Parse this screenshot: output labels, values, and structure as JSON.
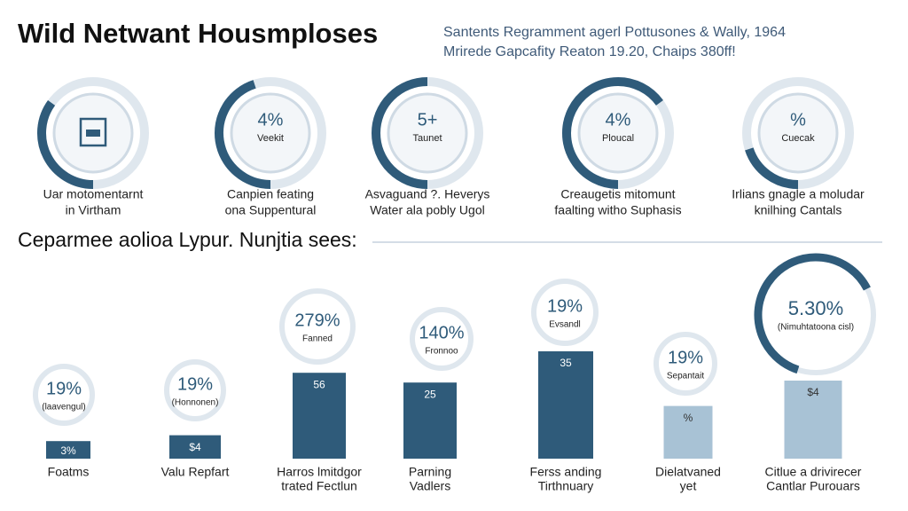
{
  "header": {
    "title": "Wild Netwant Housmploses",
    "subtitle": [
      "Santents Regramment agerl Pottusones & Wally, 1964",
      "Mrirede Gapcafity Reaton 19.20, Chaips 380ff!"
    ]
  },
  "gauges": [
    {
      "value": null,
      "sub": null,
      "fill": 35,
      "caption": [
        "Uar motomentarnt",
        "in Virtham"
      ]
    },
    {
      "value": "4%",
      "sub": "Veekit",
      "fill": 45,
      "caption": [
        "Canpien feating",
        "ona Suppentural"
      ]
    },
    {
      "value": "5+",
      "sub": "Taunet",
      "fill": 50,
      "caption": [
        "Asvaguand ?. Heverys",
        "Water ala pobly Ugol"
      ]
    },
    {
      "value": "4%",
      "sub": "Ploucal",
      "fill": 65,
      "caption": [
        "Creaugetis mitomunt",
        "faalting witho Suphasis"
      ]
    },
    {
      "value": "%",
      "sub": "Cuecak",
      "fill": 20,
      "caption": [
        "Irlians gnagle a moludar",
        "knilhing Cantals"
      ]
    }
  ],
  "section": {
    "title": "Ceparmee aolioa Lypur. Nunjtia sees:"
  },
  "bars": {
    "ylim": [
      0,
      100
    ],
    "items": [
      {
        "value": 9,
        "badge": "19%",
        "badge_sub": "(laavengul)",
        "label": "3%",
        "caption": [
          "Foatms"
        ],
        "light": false
      },
      {
        "value": 12,
        "badge": "19%",
        "badge_sub": "(Honnonen)",
        "label": "$4",
        "caption": [
          "Valu Repfart"
        ],
        "light": false
      },
      {
        "value": 44,
        "badge": "279%",
        "badge_sub": "Fanned",
        "label": "56",
        "caption": [
          "Harros lmitdgor",
          "trated Fectlun"
        ],
        "light": false
      },
      {
        "value": 39,
        "badge": "140%",
        "badge_sub": "Fronnoo",
        "label": "25",
        "caption": [
          "Parning",
          "Vadlers"
        ],
        "light": false
      },
      {
        "value": 55,
        "badge": "19%",
        "badge_sub": "Evsandl",
        "label": "35",
        "caption": [
          "Ferss anding",
          "Tirthnuary"
        ],
        "light": false
      },
      {
        "value": 27,
        "badge": "19%",
        "badge_sub": "Sepantait",
        "label": "%",
        "caption": [
          "Dielatvaned",
          "yet"
        ],
        "light": true
      },
      {
        "value": 40,
        "badge": "5.30%",
        "badge_sub": "(Nimuhtatoona cisl)",
        "label": "$4",
        "caption": [
          "Citlue a drivirecer",
          "Cantlar Purouars"
        ],
        "light": true
      }
    ]
  }
}
